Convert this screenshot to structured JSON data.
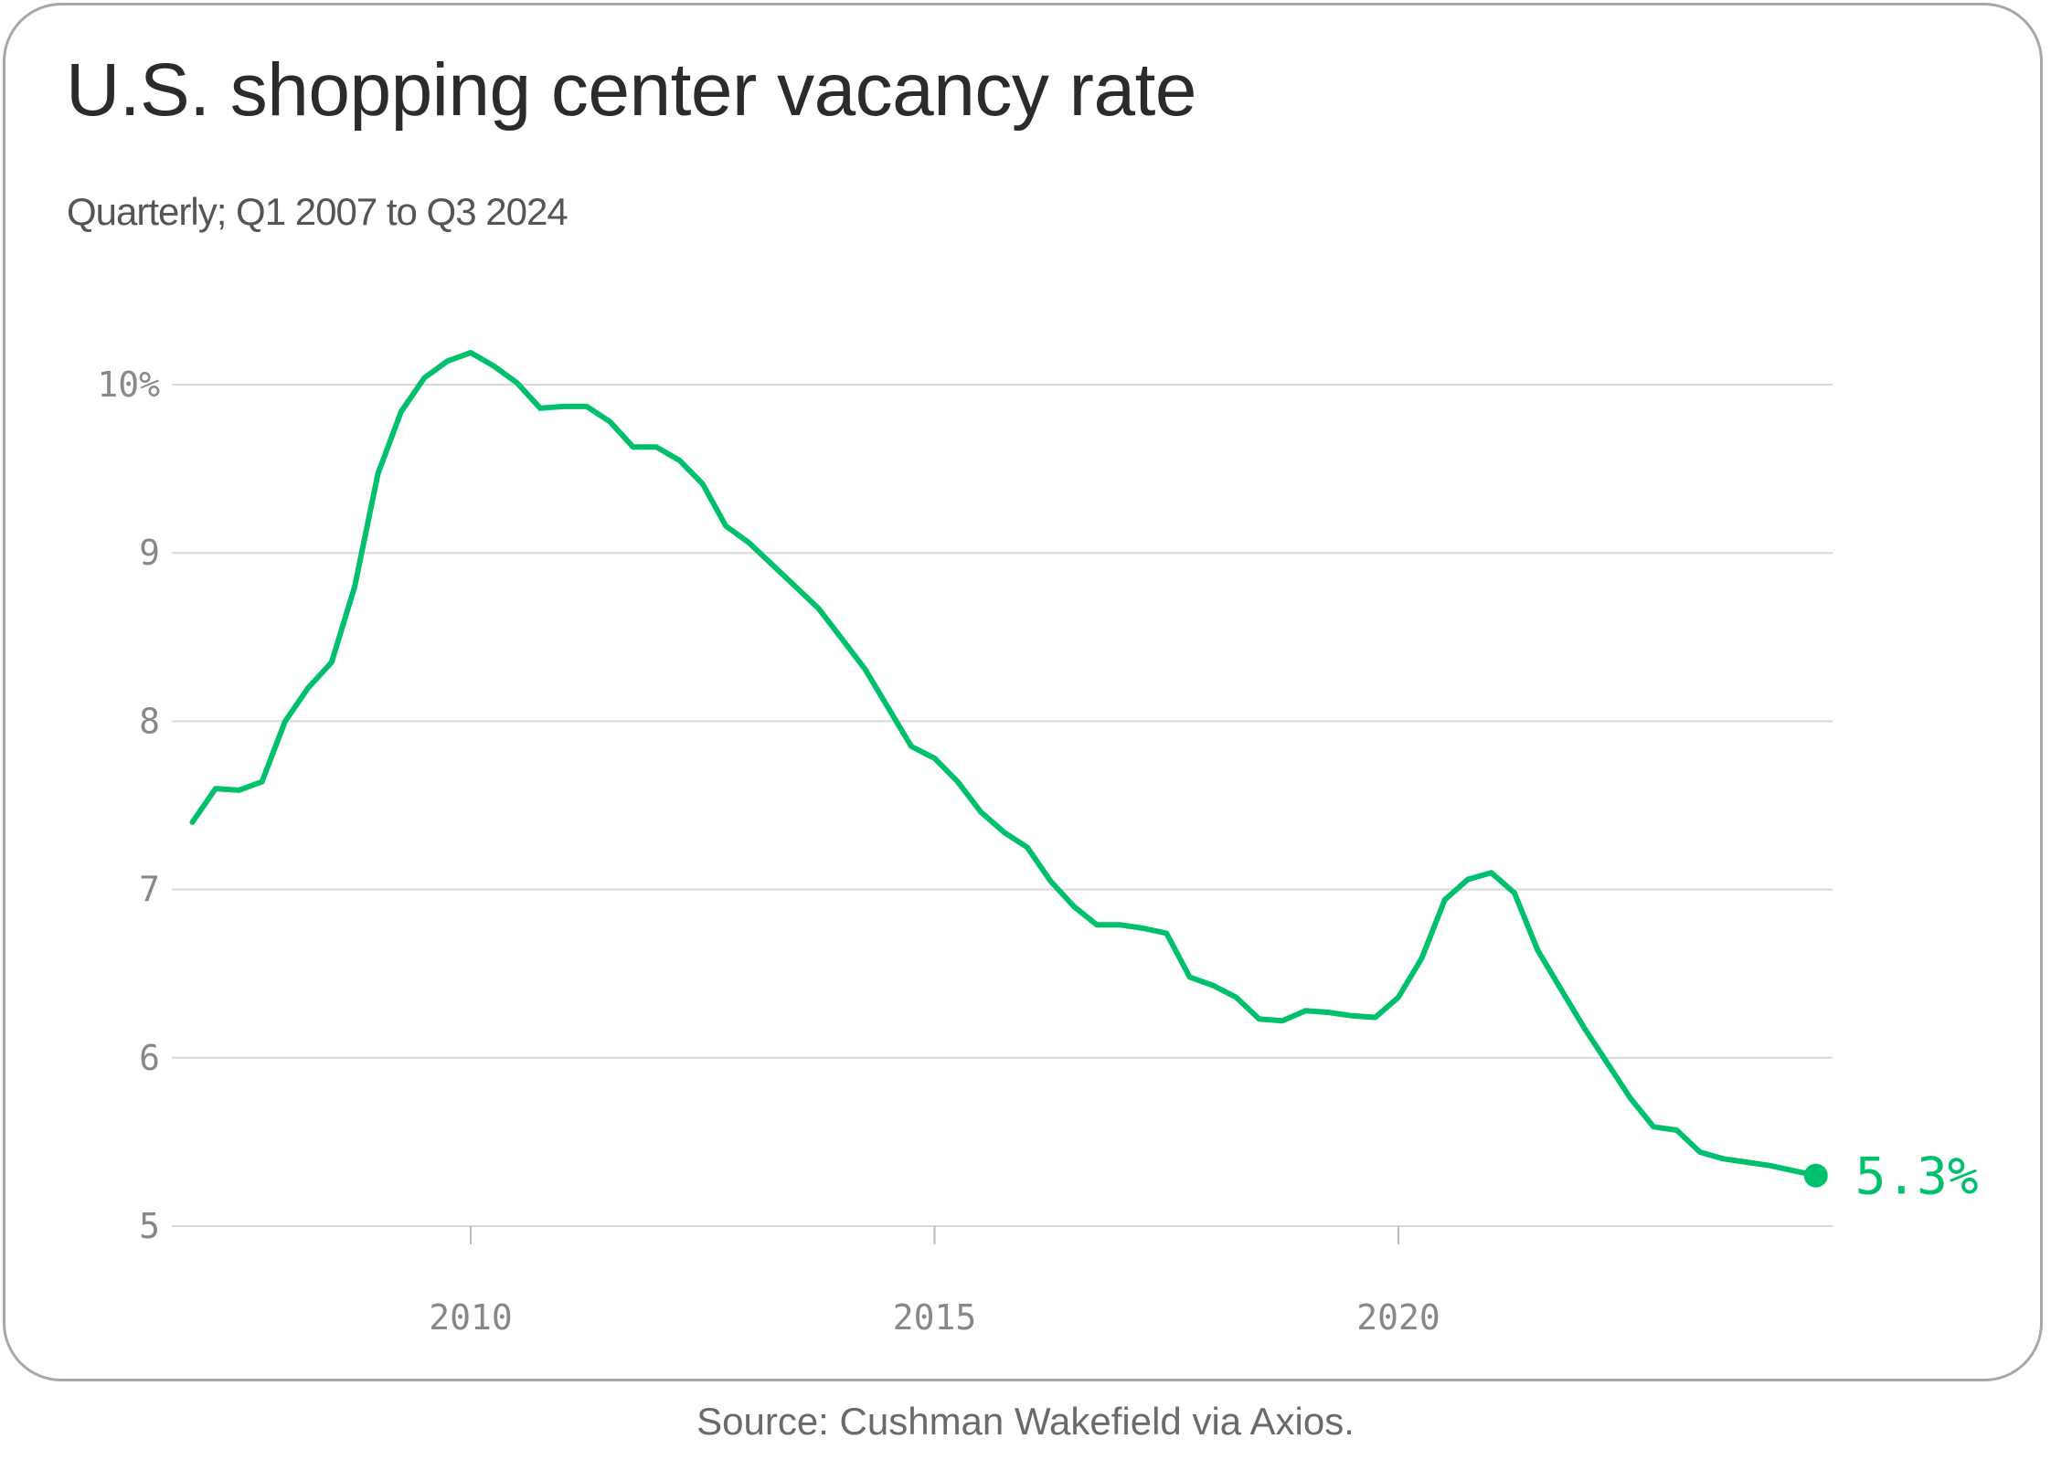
{
  "title": "U.S. shopping center vacancy rate",
  "subtitle": "Quarterly; Q1 2007 to Q3 2024",
  "source": "Source: Cushman Wakefield via Axios.",
  "colors": {
    "line": "#00c06d",
    "grid": "#d9d9d9",
    "axis_text": "#888888",
    "frame": "#a8a8a8"
  },
  "chart_data": {
    "type": "line",
    "title": "U.S. shopping center vacancy rate",
    "subtitle": "Quarterly; Q1 2007 to Q3 2024",
    "xlabel": "",
    "ylabel": "",
    "xlim": [
      2007,
      2024.5
    ],
    "ylim": [
      5,
      10.2
    ],
    "grid": true,
    "y_ticks": [
      5,
      6,
      7,
      8,
      9,
      10
    ],
    "y_tick_labels": [
      "5",
      "6",
      "7",
      "8",
      "9",
      "10%"
    ],
    "x_ticks": [
      2010,
      2015,
      2020
    ],
    "x_tick_labels": [
      "2010",
      "2015",
      "2020"
    ],
    "end_label": "5.3%",
    "series": [
      {
        "name": "Vacancy rate",
        "x": [
          2007.0,
          2007.25,
          2007.5,
          2007.75,
          2008.0,
          2008.25,
          2008.5,
          2008.75,
          2009.0,
          2009.25,
          2009.5,
          2009.75,
          2010.0,
          2010.25,
          2010.5,
          2010.75,
          2011.0,
          2011.25,
          2011.5,
          2011.75,
          2012.0,
          2012.25,
          2012.5,
          2012.75,
          2013.0,
          2013.25,
          2013.5,
          2013.75,
          2014.0,
          2014.25,
          2014.5,
          2014.75,
          2015.0,
          2015.25,
          2015.5,
          2015.75,
          2016.0,
          2016.25,
          2016.5,
          2016.75,
          2017.0,
          2017.25,
          2017.5,
          2017.75,
          2018.0,
          2018.25,
          2018.5,
          2018.75,
          2019.0,
          2019.25,
          2019.5,
          2019.75,
          2020.0,
          2020.25,
          2020.5,
          2020.75,
          2021.0,
          2021.25,
          2021.5,
          2021.75,
          2022.0,
          2022.25,
          2022.5,
          2022.75,
          2023.0,
          2023.25,
          2023.5,
          2023.75,
          2024.0,
          2024.25,
          2024.5
        ],
        "values": [
          7.4,
          7.6,
          7.59,
          7.64,
          8.0,
          8.2,
          8.35,
          8.8,
          9.47,
          9.84,
          10.04,
          10.14,
          10.19,
          10.11,
          10.01,
          9.86,
          9.87,
          9.87,
          9.78,
          9.63,
          9.63,
          9.55,
          9.41,
          9.16,
          9.06,
          8.93,
          8.8,
          8.67,
          8.49,
          8.31,
          8.08,
          7.85,
          7.78,
          7.64,
          7.46,
          7.34,
          7.25,
          7.05,
          6.9,
          6.79,
          6.79,
          6.77,
          6.74,
          6.48,
          6.43,
          6.36,
          6.23,
          6.22,
          6.28,
          6.27,
          6.25,
          6.24,
          6.36,
          6.59,
          6.94,
          7.06,
          7.1,
          6.98,
          6.64,
          6.41,
          6.18,
          5.97,
          5.76,
          5.59,
          5.57,
          5.44,
          5.4,
          5.38,
          5.36,
          5.33,
          5.3
        ]
      }
    ]
  }
}
